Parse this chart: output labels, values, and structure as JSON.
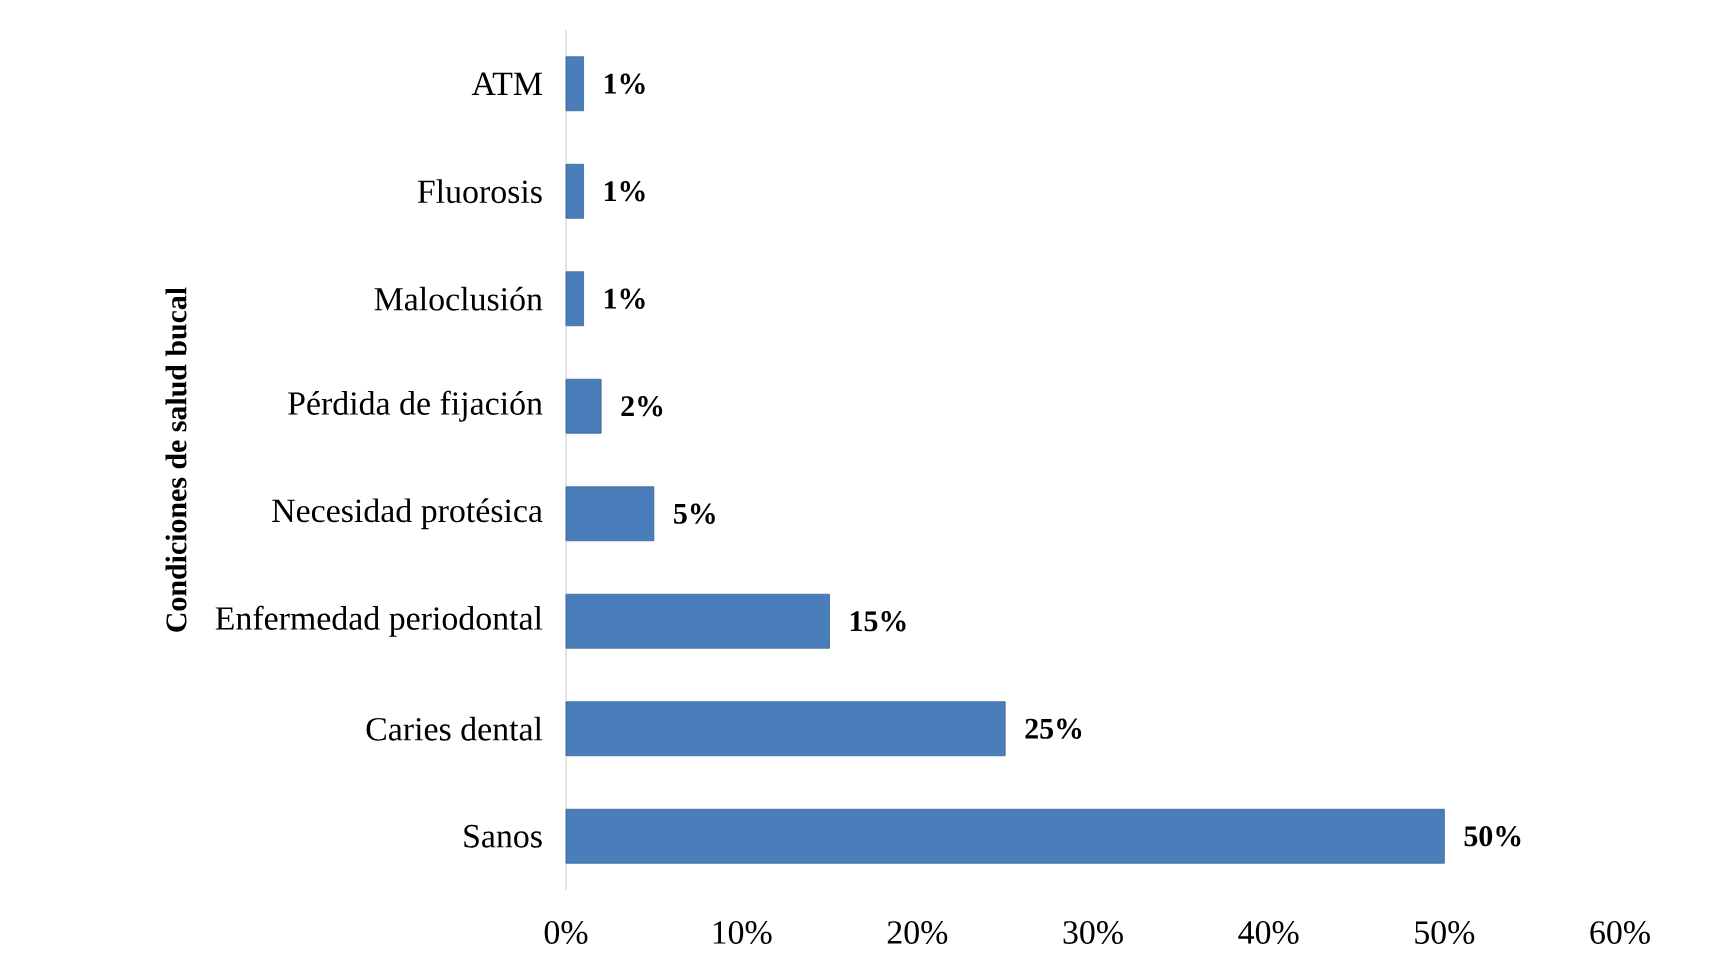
{
  "chart_data": {
    "type": "bar",
    "orientation": "horizontal",
    "ylabel": "Condiciones de salud bucal",
    "categories": [
      "ATM",
      "Fluorosis",
      "Maloclusión",
      "Pérdida de fijación",
      "Necesidad protésica",
      "Enfermedad periodontal",
      "Caries dental",
      "Sanos"
    ],
    "values": [
      1,
      1,
      1,
      2,
      5,
      15,
      25,
      50
    ],
    "value_labels": [
      "1%",
      "1%",
      "1%",
      "2%",
      "5%",
      "15%",
      "25%",
      "50%"
    ],
    "color": "#4a7ebb",
    "xlim": [
      0,
      60
    ],
    "xticks": [
      {
        "value": 0,
        "label": "0%"
      },
      {
        "value": 10,
        "label": "10%"
      },
      {
        "value": 20,
        "label": "20%"
      },
      {
        "value": 30,
        "label": "30%"
      },
      {
        "value": 40,
        "label": "40%"
      },
      {
        "value": 50,
        "label": "50%"
      },
      {
        "value": 60,
        "label": "60%"
      }
    ]
  }
}
